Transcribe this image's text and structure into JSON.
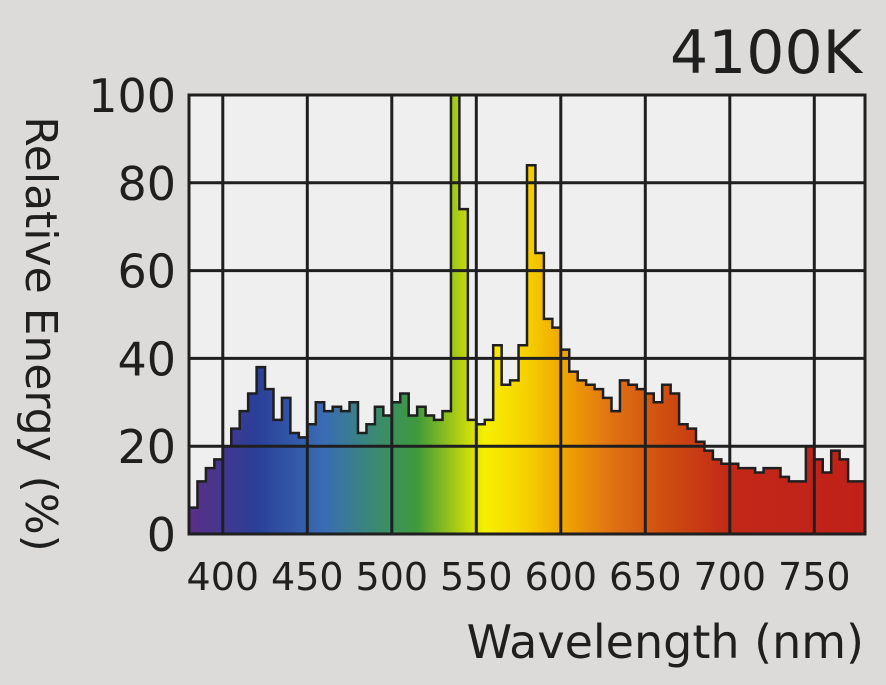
{
  "chart_data": {
    "type": "area",
    "title": "4100K",
    "xlabel": "Wavelength (nm)",
    "ylabel": "Relative Energy (%)",
    "xlim": [
      380,
      780
    ],
    "ylim": [
      0,
      100
    ],
    "x_ticks": [
      400,
      450,
      500,
      550,
      600,
      650,
      700,
      750
    ],
    "y_ticks": [
      0,
      20,
      40,
      60,
      80,
      100
    ],
    "grid": true,
    "legend": "none",
    "bin_width_nm": 5,
    "bin_starts": [
      380,
      385,
      390,
      395,
      400,
      405,
      410,
      415,
      420,
      425,
      430,
      435,
      440,
      445,
      450,
      455,
      460,
      465,
      470,
      475,
      480,
      485,
      490,
      495,
      500,
      505,
      510,
      515,
      520,
      525,
      530,
      535,
      540,
      545,
      550,
      555,
      560,
      565,
      570,
      575,
      580,
      585,
      590,
      595,
      600,
      605,
      610,
      615,
      620,
      625,
      630,
      635,
      640,
      645,
      650,
      655,
      660,
      665,
      670,
      675,
      680,
      685,
      690,
      695,
      700,
      705,
      710,
      715,
      720,
      725,
      730,
      735,
      740,
      745,
      750,
      755,
      760,
      765,
      770,
      775
    ],
    "values": [
      6,
      12,
      15,
      17,
      20,
      24,
      28,
      32,
      38,
      33,
      26,
      31,
      23,
      22,
      25,
      30,
      28,
      29,
      28,
      30,
      23,
      25,
      29,
      27,
      30,
      32,
      27,
      29,
      27,
      26,
      28,
      100,
      74,
      26,
      25,
      26,
      43,
      34,
      35,
      43,
      84,
      64,
      49,
      47,
      42,
      37,
      35,
      34,
      33,
      31,
      28,
      35,
      34,
      33,
      32,
      30,
      34,
      32,
      25,
      24,
      21,
      19,
      17,
      16,
      16,
      15,
      15,
      14,
      15,
      15,
      13,
      12,
      12,
      20,
      17,
      14,
      19,
      17,
      12,
      12
    ],
    "axis_color": "#1f1f1f",
    "plot_background": "#f0eff0",
    "page_background": "#dcdbd9",
    "spectrum_colors": [
      {
        "nm": 380,
        "color": "#5a2f86"
      },
      {
        "nm": 420,
        "color": "#2a3f98"
      },
      {
        "nm": 460,
        "color": "#3a6cb4"
      },
      {
        "nm": 490,
        "color": "#3a8a72"
      },
      {
        "nm": 515,
        "color": "#3e9a3c"
      },
      {
        "nm": 535,
        "color": "#9ac419"
      },
      {
        "nm": 555,
        "color": "#f6f000"
      },
      {
        "nm": 580,
        "color": "#f6d000"
      },
      {
        "nm": 600,
        "color": "#f0a800"
      },
      {
        "nm": 630,
        "color": "#e07212"
      },
      {
        "nm": 665,
        "color": "#cd4a10"
      },
      {
        "nm": 700,
        "color": "#c22818"
      },
      {
        "nm": 780,
        "color": "#c02018"
      }
    ]
  }
}
